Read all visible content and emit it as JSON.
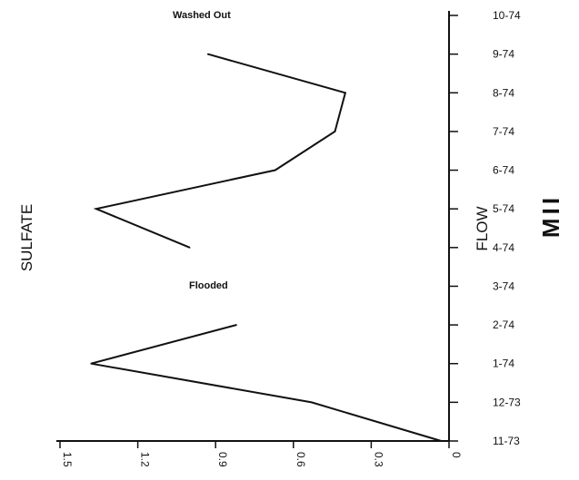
{
  "chart_data": {
    "type": "line",
    "orientation": "rotated",
    "title": "",
    "side_labels": {
      "left": "SULFATE",
      "right_small": "FLOW",
      "right_large": "MII"
    },
    "x_axis": {
      "label": "",
      "ticks": [
        "1.5",
        "1.2",
        "0.9",
        "0.6",
        "0.3",
        "0"
      ],
      "range": [
        0,
        1.5
      ],
      "reversed": true
    },
    "y_axis": {
      "label": "",
      "ticks": [
        "11-73",
        "12-73",
        "1-74",
        "2-74",
        "3-74",
        "4-74",
        "5-74",
        "6-74",
        "7-74",
        "8-74",
        "9-74",
        "10-74"
      ]
    },
    "annotations": [
      {
        "text": "Washed Out",
        "at": "10-74"
      },
      {
        "text": "Flooded",
        "at": "3-74"
      }
    ],
    "series": [
      {
        "segments": [
          {
            "points": [
              {
                "date": "11-73",
                "value": 0.03
              },
              {
                "date": "12-73",
                "value": 0.53
              },
              {
                "date": "1-74",
                "value": 1.38
              },
              {
                "date": "2-74",
                "value": 0.82
              }
            ]
          },
          {
            "points": [
              {
                "date": "4-74",
                "value": 1.0
              },
              {
                "date": "5-74",
                "value": 1.36
              },
              {
                "date": "6-74",
                "value": 0.67
              },
              {
                "date": "7-74",
                "value": 0.44
              },
              {
                "date": "8-74",
                "value": 0.4
              },
              {
                "date": "9-74",
                "value": 0.93
              }
            ]
          }
        ]
      }
    ],
    "grid": false,
    "legend": "none"
  }
}
